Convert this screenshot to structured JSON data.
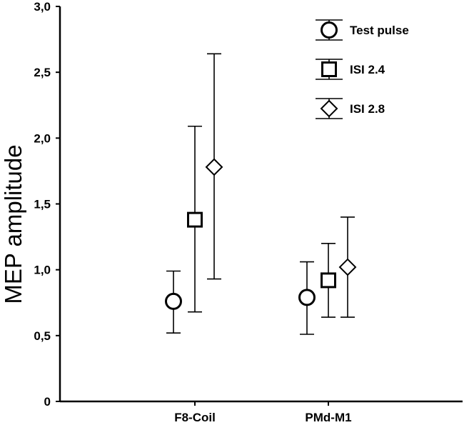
{
  "chart_data": {
    "type": "scatter",
    "ylabel": "MEP amplitude",
    "xlabel": "",
    "ylim": [
      0,
      3.0
    ],
    "yticks": [
      0,
      0.5,
      1.0,
      1.5,
      2.0,
      2.5,
      3.0
    ],
    "ytick_labels": [
      "0",
      "0,5",
      "1,0",
      "1,5",
      "2,0",
      "2,5",
      "3,0"
    ],
    "categories": [
      "F8-Coil",
      "PMd-M1"
    ],
    "legend_position": "top-right",
    "grid": false,
    "series": [
      {
        "name": "Test pulse",
        "marker": "circle",
        "values": [
          0.76,
          0.79
        ],
        "err_low": [
          0.52,
          0.51
        ],
        "err_high": [
          0.99,
          1.06
        ]
      },
      {
        "name": "ISI 2.4",
        "marker": "square",
        "values": [
          1.38,
          0.92
        ],
        "err_low": [
          0.68,
          0.64
        ],
        "err_high": [
          2.09,
          1.2
        ]
      },
      {
        "name": "ISI 2.8",
        "marker": "diamond",
        "values": [
          1.78,
          1.02
        ],
        "err_low": [
          0.93,
          0.64
        ],
        "err_high": [
          2.64,
          1.4
        ]
      }
    ]
  }
}
